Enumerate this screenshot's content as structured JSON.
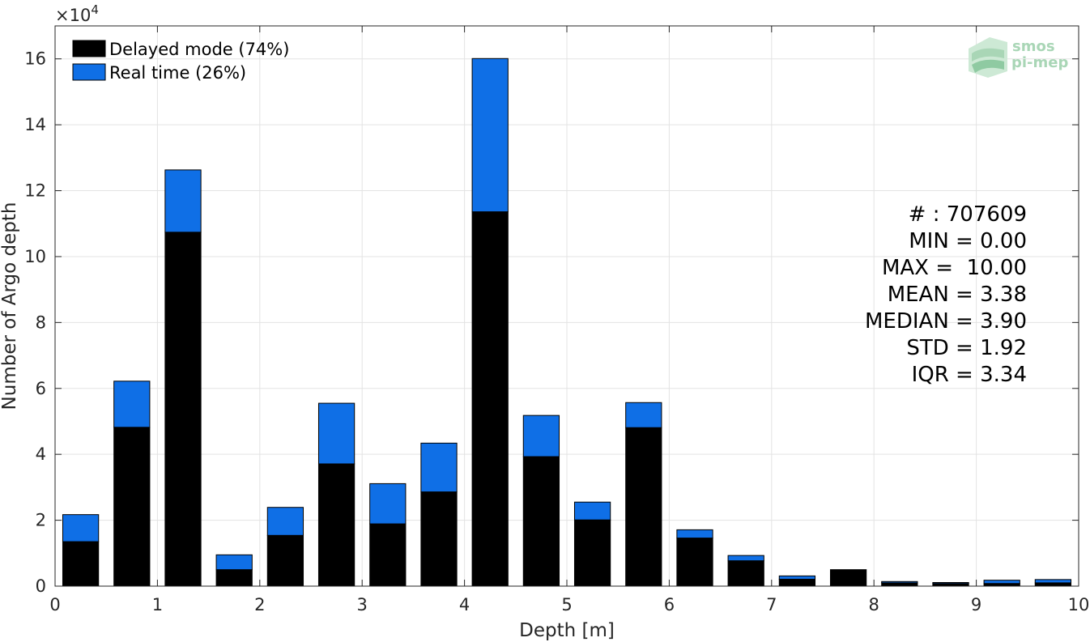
{
  "chart_data": {
    "type": "bar",
    "stacked": true,
    "xlabel": "Depth [m]",
    "ylabel": "Number of Argo depth",
    "y_multiplier_label": "×10",
    "y_multiplier_exponent": "4",
    "xlim": [
      0,
      10
    ],
    "ylim": [
      0,
      170000
    ],
    "grid": true,
    "bin_width": 0.5,
    "x_ticks": [
      "0",
      "1",
      "2",
      "3",
      "4",
      "5",
      "6",
      "7",
      "8",
      "9",
      "10"
    ],
    "y_ticks": [
      {
        "value": 0,
        "label": "0"
      },
      {
        "value": 20000,
        "label": "2"
      },
      {
        "value": 40000,
        "label": "4"
      },
      {
        "value": 60000,
        "label": "6"
      },
      {
        "value": 80000,
        "label": "8"
      },
      {
        "value": 100000,
        "label": "10"
      },
      {
        "value": 120000,
        "label": "12"
      },
      {
        "value": 140000,
        "label": "14"
      },
      {
        "value": 160000,
        "label": "16"
      }
    ],
    "bin_centers": [
      0.25,
      0.75,
      1.25,
      1.75,
      2.25,
      2.75,
      3.25,
      3.75,
      4.25,
      4.75,
      5.25,
      5.75,
      6.25,
      6.75,
      7.25,
      7.75,
      8.25,
      8.75,
      9.25,
      9.75
    ],
    "series": [
      {
        "name": "Delayed mode (74%)",
        "color": "#000000",
        "values": [
          13500,
          48200,
          107400,
          5000,
          15400,
          37100,
          18900,
          28600,
          113600,
          39300,
          20100,
          48100,
          14600,
          7700,
          2100,
          5000,
          1000,
          800,
          800,
          1000
        ]
      },
      {
        "name": "Real time (26%)",
        "color": "#0f6fe6",
        "values": [
          8200,
          14000,
          18900,
          4500,
          8500,
          18400,
          12200,
          14800,
          46500,
          12500,
          5400,
          7600,
          2500,
          1600,
          1000,
          0,
          400,
          300,
          1000,
          1000
        ]
      }
    ],
    "legend_position": "top-left",
    "stats": [
      "# : 707609",
      "MIN = 0.00",
      "MAX =  10.00",
      "MEAN = 3.38",
      "MEDIAN = 3.90",
      "STD = 1.92",
      "IQR = 3.34"
    ]
  },
  "watermark": {
    "line1": "smos",
    "line2": "pi-mep",
    "color": "#a9d6b6"
  }
}
